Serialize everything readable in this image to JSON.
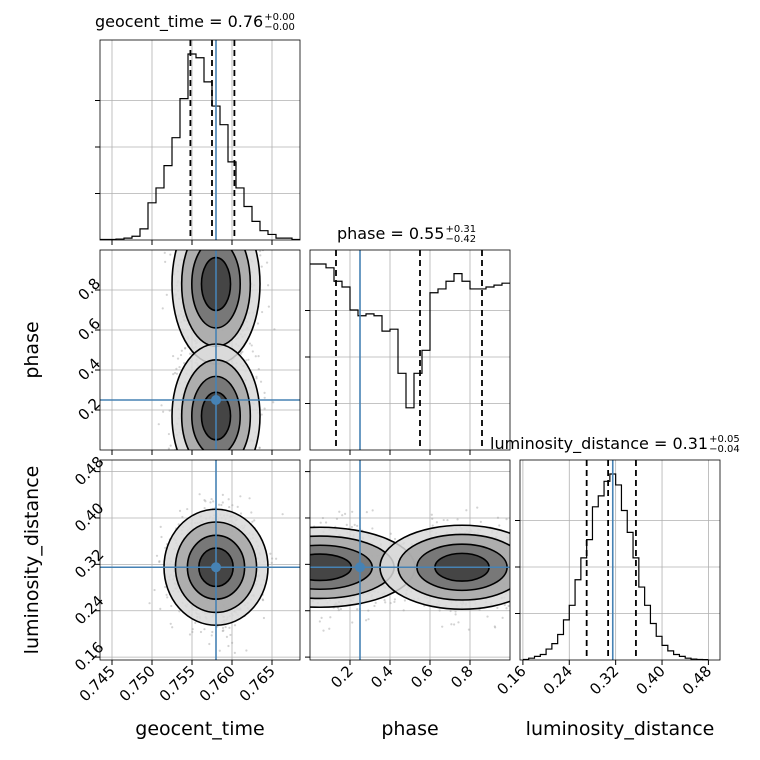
{
  "chart_data": {
    "type": "corner",
    "parameters": [
      "geocent_time",
      "phase",
      "luminosity_distance"
    ],
    "truths": {
      "geocent_time": 0.758,
      "phase": 0.25,
      "luminosity_distance": 0.315
    },
    "colors": {
      "truth": "#4682b4",
      "hist": "#000000",
      "grid": "#b0b0b0",
      "scatter": "#9e9e9e"
    },
    "titles": {
      "geocent_time": {
        "text": "geocent_time = 0.76",
        "plus": "+0.00",
        "minus": "−0.00"
      },
      "phase": {
        "text": "phase = 0.55",
        "plus": "+0.31",
        "minus": "−0.42"
      },
      "luminosity_distance": {
        "text": "luminosity_distance = 0.31",
        "plus": "+0.05",
        "minus": "−0.04"
      }
    },
    "axis_labels": {
      "geocent_time": "geocent_time",
      "phase": "phase",
      "luminosity_distance": "luminosity_distance"
    },
    "ranges": {
      "geocent_time": [
        0.7435,
        0.7685
      ],
      "phase": [
        0.0,
        1.0
      ],
      "luminosity_distance": [
        0.155,
        0.5
      ]
    },
    "ticks": {
      "geocent_time": {
        "values": [
          0.745,
          0.75,
          0.755,
          0.76,
          0.765
        ],
        "labels": [
          "0.745",
          "0.750",
          "0.755",
          "0.760",
          "0.765"
        ]
      },
      "phase": {
        "values": [
          0.2,
          0.4,
          0.6,
          0.8
        ],
        "labels": [
          "0.2",
          "0.4",
          "0.6",
          "0.8"
        ]
      },
      "luminosity_distance": {
        "values": [
          0.16,
          0.24,
          0.32,
          0.4,
          0.48
        ],
        "labels": [
          "0.16",
          "0.24",
          "0.32",
          "0.40",
          "0.48"
        ]
      }
    },
    "histograms": {
      "geocent_time": {
        "edges": [
          0.7435,
          0.7445,
          0.7455,
          0.7465,
          0.7475,
          0.7485,
          0.7495,
          0.7505,
          0.7515,
          0.7525,
          0.7535,
          0.7545,
          0.7555,
          0.7565,
          0.7575,
          0.7585,
          0.7595,
          0.7605,
          0.7615,
          0.7625,
          0.7635,
          0.7645,
          0.7655,
          0.7665,
          0.7675,
          0.7685
        ],
        "counts": [
          0.3,
          0.3,
          0.5,
          1,
          2,
          6,
          20,
          28,
          40,
          55,
          76,
          100,
          98,
          85,
          72,
          62,
          42,
          28,
          18,
          10,
          5,
          3,
          1,
          1,
          0.3
        ],
        "quantiles": [
          0.7548,
          0.7575,
          0.7603
        ]
      },
      "phase": {
        "edges": [
          0,
          0.04,
          0.08,
          0.12,
          0.16,
          0.2,
          0.24,
          0.28,
          0.32,
          0.36,
          0.4,
          0.44,
          0.48,
          0.52,
          0.56,
          0.6,
          0.64,
          0.68,
          0.72,
          0.76,
          0.8,
          0.84,
          0.88,
          0.92,
          0.96,
          1.0
        ],
        "counts": [
          97,
          97,
          95,
          88,
          85,
          73,
          70,
          71,
          70,
          62,
          63,
          40,
          22,
          40,
          52,
          82,
          84,
          88,
          92,
          88,
          84,
          84,
          85,
          86,
          87
        ],
        "quantiles": [
          0.13,
          0.55,
          0.86
        ]
      },
      "luminosity_distance": {
        "edges": [
          0.16,
          0.17,
          0.18,
          0.19,
          0.2,
          0.21,
          0.22,
          0.23,
          0.24,
          0.25,
          0.26,
          0.27,
          0.28,
          0.29,
          0.3,
          0.31,
          0.32,
          0.33,
          0.34,
          0.35,
          0.36,
          0.37,
          0.38,
          0.39,
          0.4,
          0.41,
          0.42,
          0.43,
          0.44,
          0.45,
          0.46,
          0.47,
          0.48
        ],
        "counts": [
          0.3,
          1,
          2,
          3,
          6,
          9,
          14,
          22,
          30,
          44,
          56,
          66,
          84,
          90,
          98,
          102,
          96,
          82,
          70,
          56,
          40,
          30,
          20,
          13,
          8,
          5,
          3,
          2,
          1,
          0.5,
          0.3,
          0.2
        ],
        "quantiles": [
          0.27,
          0.307,
          0.355
        ]
      }
    },
    "density_2d": {
      "phase_vs_geocent_time": {
        "x": "geocent_time",
        "y": "phase",
        "center_x": 0.758,
        "std_x": 0.0023,
        "modes_y": [
          0.2,
          0.8
        ],
        "std_y": [
          0.17,
          0.17
        ]
      },
      "luminosity_distance_vs_geocent_time": {
        "x": "geocent_time",
        "y": "luminosity_distance",
        "center_x": 0.758,
        "std_x": 0.0023,
        "center_y": 0.315,
        "std_y": 0.042
      },
      "luminosity_distance_vs_phase": {
        "x": "phase",
        "y": "luminosity_distance",
        "modes_x": [
          0.05,
          0.75
        ],
        "center_y": 0.315,
        "std_y": 0.035
      }
    }
  }
}
